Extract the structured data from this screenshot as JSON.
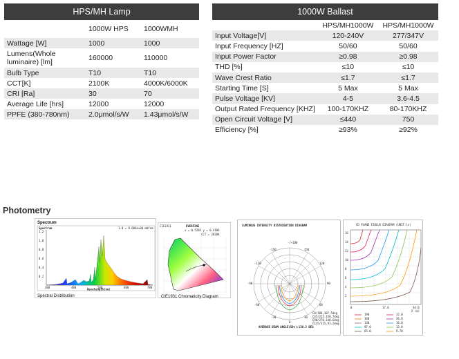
{
  "hps_table": {
    "title": "HPS/MH Lamp",
    "columns": [
      "",
      "1000W HPS",
      "1000WMH"
    ],
    "rows": [
      [
        "Wattage [W]",
        "1000",
        "1000"
      ],
      [
        "Lumens(Whole luminaire) [lm]",
        "160000",
        "110000"
      ],
      [
        "Bulb Type",
        "T10",
        "T10"
      ],
      [
        "CCT[K]",
        "2100K",
        "4000K/6000K"
      ],
      [
        "CRI [Ra]",
        "30",
        "70"
      ],
      [
        "Average Life [hrs]",
        "12000",
        "12000"
      ],
      [
        "PPFE (380-780nm)",
        "2.0μmol/s/W",
        "1.43μmol/s/W"
      ]
    ]
  },
  "ballast_table": {
    "title": "1000W Ballast",
    "columns": [
      "",
      "HPS/MH1000W",
      "HPS/MH1000W"
    ],
    "rows": [
      [
        "Input Voltage[V]",
        "120-240V",
        "277/347V"
      ],
      [
        "Input Frequency [HZ]",
        "50/60",
        "50/60"
      ],
      [
        "Input Power Factor",
        "≥0.98",
        "≥0.98"
      ],
      [
        "THD [%]",
        "≤10",
        "≤10"
      ],
      [
        "Wave Crest Ratio",
        "≤1.7",
        "≤1.7"
      ],
      [
        "Starting Time [S]",
        "5 Max",
        "5 Max"
      ],
      [
        "Pulse Voltage [KV]",
        "4-5",
        "3.6-4.5"
      ],
      [
        "Output Rated Frequency [KHZ]",
        "100-170KHZ",
        "80-170KHZ"
      ],
      [
        "Open Circuit Voltage [V]",
        "≤440",
        "750"
      ],
      [
        "Efficiency [%]",
        "≥93%",
        "≥92%"
      ]
    ]
  },
  "photometry": {
    "title": "Photometry",
    "spectrum": {
      "heading": "Spectrum",
      "inner_title": "Spectrum",
      "caption": "Spectral Distribution",
      "xlabel": "Wavelength(nm)",
      "x_ticks": [
        "380",
        "480",
        "580",
        "680",
        "780"
      ],
      "y_ticks": [
        "1.2",
        "1.0",
        "0.8",
        "0.6",
        "0.4",
        "0.2"
      ],
      "readout": "1.0 = 8.686e+00 mW/nm"
    },
    "cie": {
      "caption": "CIE1931 Chromaticity Diagram",
      "header": "CIE1931",
      "header2": "EVERFINE",
      "coords": "x = 0.5283  y = 0.4186",
      "cct": "CCT = 2020K"
    },
    "polar": {
      "title": "LUMINOUS INTENSITY DISTRIBUTION DIAGRAM",
      "top_label": "-/+180",
      "angle_labels": [
        "-150",
        "150",
        "-120",
        "120",
        "-90",
        "90",
        "-60",
        "60",
        "-30",
        "0",
        "30"
      ],
      "legend": [
        "C0/180,107.5deg",
        "C45/225,150.7deg",
        "C90/270,140.6deg",
        "C135/315,93.2deg"
      ],
      "footer": "AVERAGE BEAM ANGLE(50%):130.3 DEG"
    },
    "cd_plane": {
      "title": "CD PLANE ISOLUX DIAGRAM (UNIT:lx)",
      "y_ticks": [
        "16",
        "14",
        "12",
        "10",
        "8",
        "6",
        "4",
        "2"
      ],
      "x_ticks": [
        "0",
        "17.0",
        "34.0"
      ],
      "x_unit": "X (m)",
      "legend": [
        {
          "value": "190",
          "color": "#d32f2f"
        },
        {
          "value": "32.0",
          "color": "#e91e63"
        },
        {
          "value": "160",
          "color": "#f57c00"
        },
        {
          "value": "26.0",
          "color": "#9c27b0"
        },
        {
          "value": "130",
          "color": "#8d6e63"
        },
        {
          "value": "16.0",
          "color": "#2196f3"
        },
        {
          "value": "97.0",
          "color": "#00bcd4"
        },
        {
          "value": "13.0",
          "color": "#8bc34a"
        },
        {
          "value": "65.0",
          "color": "#795548"
        },
        {
          "value": "9.70",
          "color": "#ff9800"
        }
      ]
    }
  }
}
